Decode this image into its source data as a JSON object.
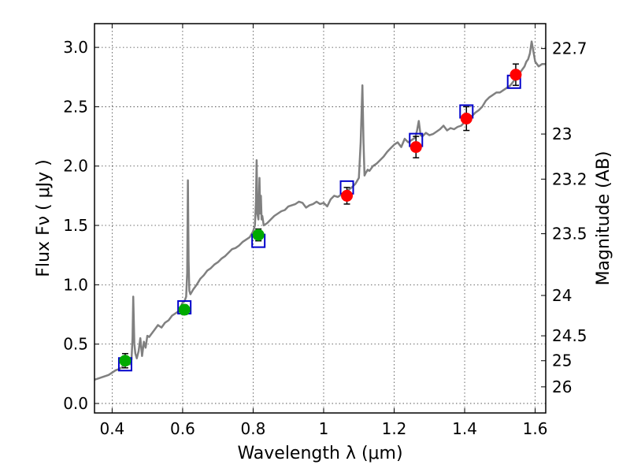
{
  "chart_data": {
    "type": "scatter",
    "xlabel": "Wavelength  λ (μm)",
    "ylabel_left": "Flux  Fν  ( μJy )",
    "ylabel_right": "Magnitude (AB)",
    "xlim": [
      0.35,
      1.63
    ],
    "ylim": [
      -0.08,
      3.2
    ],
    "grid": true,
    "x_ticks": [
      0.4,
      0.6,
      0.8,
      1.0,
      1.2,
      1.4,
      1.6
    ],
    "x_tick_labels": [
      "0.4",
      "0.6",
      "0.8",
      "1",
      "1.2",
      "1.4",
      "1.6"
    ],
    "y_ticks": [
      0.0,
      0.5,
      1.0,
      1.5,
      2.0,
      2.5,
      3.0
    ],
    "y_tick_labels": [
      "0.0",
      "0.5",
      "1.0",
      "1.5",
      "2.0",
      "2.5",
      "3.0"
    ],
    "right_ticks": [
      {
        "label": "22.7",
        "flux": 2.99
      },
      {
        "label": "23",
        "flux": 2.27
      },
      {
        "label": "23.2",
        "flux": 1.89
      },
      {
        "label": "23.5",
        "flux": 1.43
      },
      {
        "label": "24",
        "flux": 0.91
      },
      {
        "label": "24.5",
        "flux": 0.57
      },
      {
        "label": "25",
        "flux": 0.36
      },
      {
        "label": "26",
        "flux": 0.14
      }
    ],
    "series": [
      {
        "mark": "line",
        "color": "#808080",
        "x": [
          0.35,
          0.37,
          0.39,
          0.4,
          0.41,
          0.42,
          0.43,
          0.44,
          0.445,
          0.45,
          0.455,
          0.458,
          0.46,
          0.463,
          0.466,
          0.47,
          0.475,
          0.48,
          0.485,
          0.49,
          0.495,
          0.5,
          0.505,
          0.51,
          0.52,
          0.53,
          0.54,
          0.55,
          0.56,
          0.57,
          0.58,
          0.59,
          0.6,
          0.605,
          0.61,
          0.613,
          0.615,
          0.617,
          0.619,
          0.622,
          0.63,
          0.64,
          0.65,
          0.66,
          0.67,
          0.68,
          0.69,
          0.7,
          0.71,
          0.72,
          0.73,
          0.74,
          0.75,
          0.76,
          0.77,
          0.78,
          0.79,
          0.8,
          0.805,
          0.808,
          0.81,
          0.812,
          0.815,
          0.818,
          0.82,
          0.822,
          0.824,
          0.826,
          0.83,
          0.84,
          0.85,
          0.86,
          0.87,
          0.88,
          0.89,
          0.9,
          0.91,
          0.92,
          0.93,
          0.94,
          0.95,
          0.96,
          0.97,
          0.98,
          0.99,
          1.0,
          1.01,
          1.02,
          1.03,
          1.04,
          1.05,
          1.06,
          1.07,
          1.08,
          1.09,
          1.1,
          1.105,
          1.11,
          1.113,
          1.116,
          1.119,
          1.125,
          1.13,
          1.14,
          1.15,
          1.16,
          1.17,
          1.18,
          1.19,
          1.2,
          1.21,
          1.22,
          1.23,
          1.24,
          1.25,
          1.26,
          1.265,
          1.27,
          1.275,
          1.28,
          1.29,
          1.3,
          1.31,
          1.32,
          1.33,
          1.34,
          1.35,
          1.36,
          1.37,
          1.38,
          1.39,
          1.4,
          1.41,
          1.42,
          1.43,
          1.44,
          1.45,
          1.46,
          1.47,
          1.48,
          1.49,
          1.5,
          1.51,
          1.52,
          1.53,
          1.54,
          1.55,
          1.56,
          1.57,
          1.575,
          1.58,
          1.585,
          1.59,
          1.6,
          1.61,
          1.62,
          1.63
        ],
        "y": [
          0.2,
          0.22,
          0.24,
          0.26,
          0.28,
          0.29,
          0.31,
          0.34,
          0.35,
          0.33,
          0.37,
          0.55,
          0.9,
          0.5,
          0.42,
          0.38,
          0.44,
          0.55,
          0.4,
          0.52,
          0.47,
          0.57,
          0.56,
          0.58,
          0.62,
          0.66,
          0.64,
          0.68,
          0.7,
          0.74,
          0.76,
          0.78,
          0.85,
          0.86,
          0.9,
          1.1,
          1.88,
          1.2,
          0.95,
          0.92,
          0.96,
          1.0,
          1.05,
          1.08,
          1.12,
          1.14,
          1.17,
          1.19,
          1.22,
          1.24,
          1.27,
          1.3,
          1.31,
          1.33,
          1.36,
          1.38,
          1.4,
          1.45,
          1.5,
          1.7,
          2.05,
          1.6,
          1.55,
          1.9,
          1.6,
          1.75,
          1.55,
          1.58,
          1.5,
          1.52,
          1.55,
          1.58,
          1.6,
          1.62,
          1.63,
          1.66,
          1.67,
          1.68,
          1.7,
          1.69,
          1.65,
          1.67,
          1.68,
          1.7,
          1.68,
          1.69,
          1.66,
          1.72,
          1.75,
          1.74,
          1.76,
          1.78,
          1.8,
          1.82,
          1.85,
          1.9,
          2.2,
          2.68,
          2.2,
          1.92,
          1.94,
          1.97,
          1.96,
          2.0,
          2.02,
          2.05,
          2.08,
          2.12,
          2.15,
          2.18,
          2.2,
          2.16,
          2.23,
          2.2,
          2.22,
          2.24,
          2.3,
          2.38,
          2.26,
          2.25,
          2.28,
          2.26,
          2.27,
          2.29,
          2.31,
          2.34,
          2.3,
          2.32,
          2.31,
          2.33,
          2.34,
          2.37,
          2.4,
          2.42,
          2.45,
          2.47,
          2.5,
          2.55,
          2.58,
          2.6,
          2.62,
          2.62,
          2.64,
          2.66,
          2.68,
          2.72,
          2.76,
          2.8,
          2.84,
          2.88,
          2.9,
          2.95,
          3.05,
          2.88,
          2.84,
          2.86,
          2.86
        ]
      },
      {
        "mark": "open-square",
        "color": "#0000cc",
        "x": [
          0.437,
          0.605,
          0.815,
          1.066,
          1.262,
          1.405,
          1.54
        ],
        "y": [
          0.33,
          0.81,
          1.37,
          1.82,
          2.22,
          2.46,
          2.71
        ]
      },
      {
        "mark": "circle",
        "color": "#00aa00",
        "x": [
          0.437,
          0.605,
          0.815
        ],
        "y": [
          0.36,
          0.79,
          1.42
        ],
        "err": [
          0.06,
          0.04,
          0.05
        ]
      },
      {
        "mark": "circle",
        "color": "#ff0000",
        "x": [
          1.066,
          1.262,
          1.405,
          1.545
        ],
        "y": [
          1.75,
          2.16,
          2.4,
          2.77
        ],
        "err": [
          0.07,
          0.09,
          0.1,
          0.09
        ]
      }
    ]
  }
}
